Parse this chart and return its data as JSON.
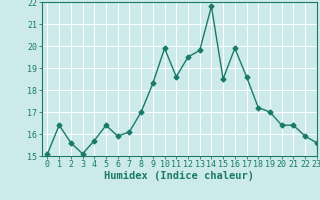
{
  "x": [
    0,
    1,
    2,
    3,
    4,
    5,
    6,
    7,
    8,
    9,
    10,
    11,
    12,
    13,
    14,
    15,
    16,
    17,
    18,
    19,
    20,
    21,
    22,
    23
  ],
  "y": [
    15.1,
    16.4,
    15.6,
    15.1,
    15.7,
    16.4,
    15.9,
    16.1,
    17.0,
    18.3,
    19.9,
    18.6,
    19.5,
    19.8,
    21.8,
    18.5,
    19.9,
    18.6,
    17.2,
    17.0,
    16.4,
    16.4,
    15.9,
    15.6
  ],
  "xlabel": "Humidex (Indice chaleur)",
  "ylim": [
    15,
    22
  ],
  "xlim": [
    -0.5,
    23
  ],
  "yticks": [
    15,
    16,
    17,
    18,
    19,
    20,
    21,
    22
  ],
  "xticks": [
    0,
    1,
    2,
    3,
    4,
    5,
    6,
    7,
    8,
    9,
    10,
    11,
    12,
    13,
    14,
    15,
    16,
    17,
    18,
    19,
    20,
    21,
    22,
    23
  ],
  "line_color": "#1a7a6a",
  "marker": "D",
  "marker_size": 2.5,
  "bg_color": "#cceaea",
  "grid_color": "#ffffff",
  "tick_fontsize": 6,
  "xlabel_fontsize": 7.5,
  "line_width": 1.0
}
